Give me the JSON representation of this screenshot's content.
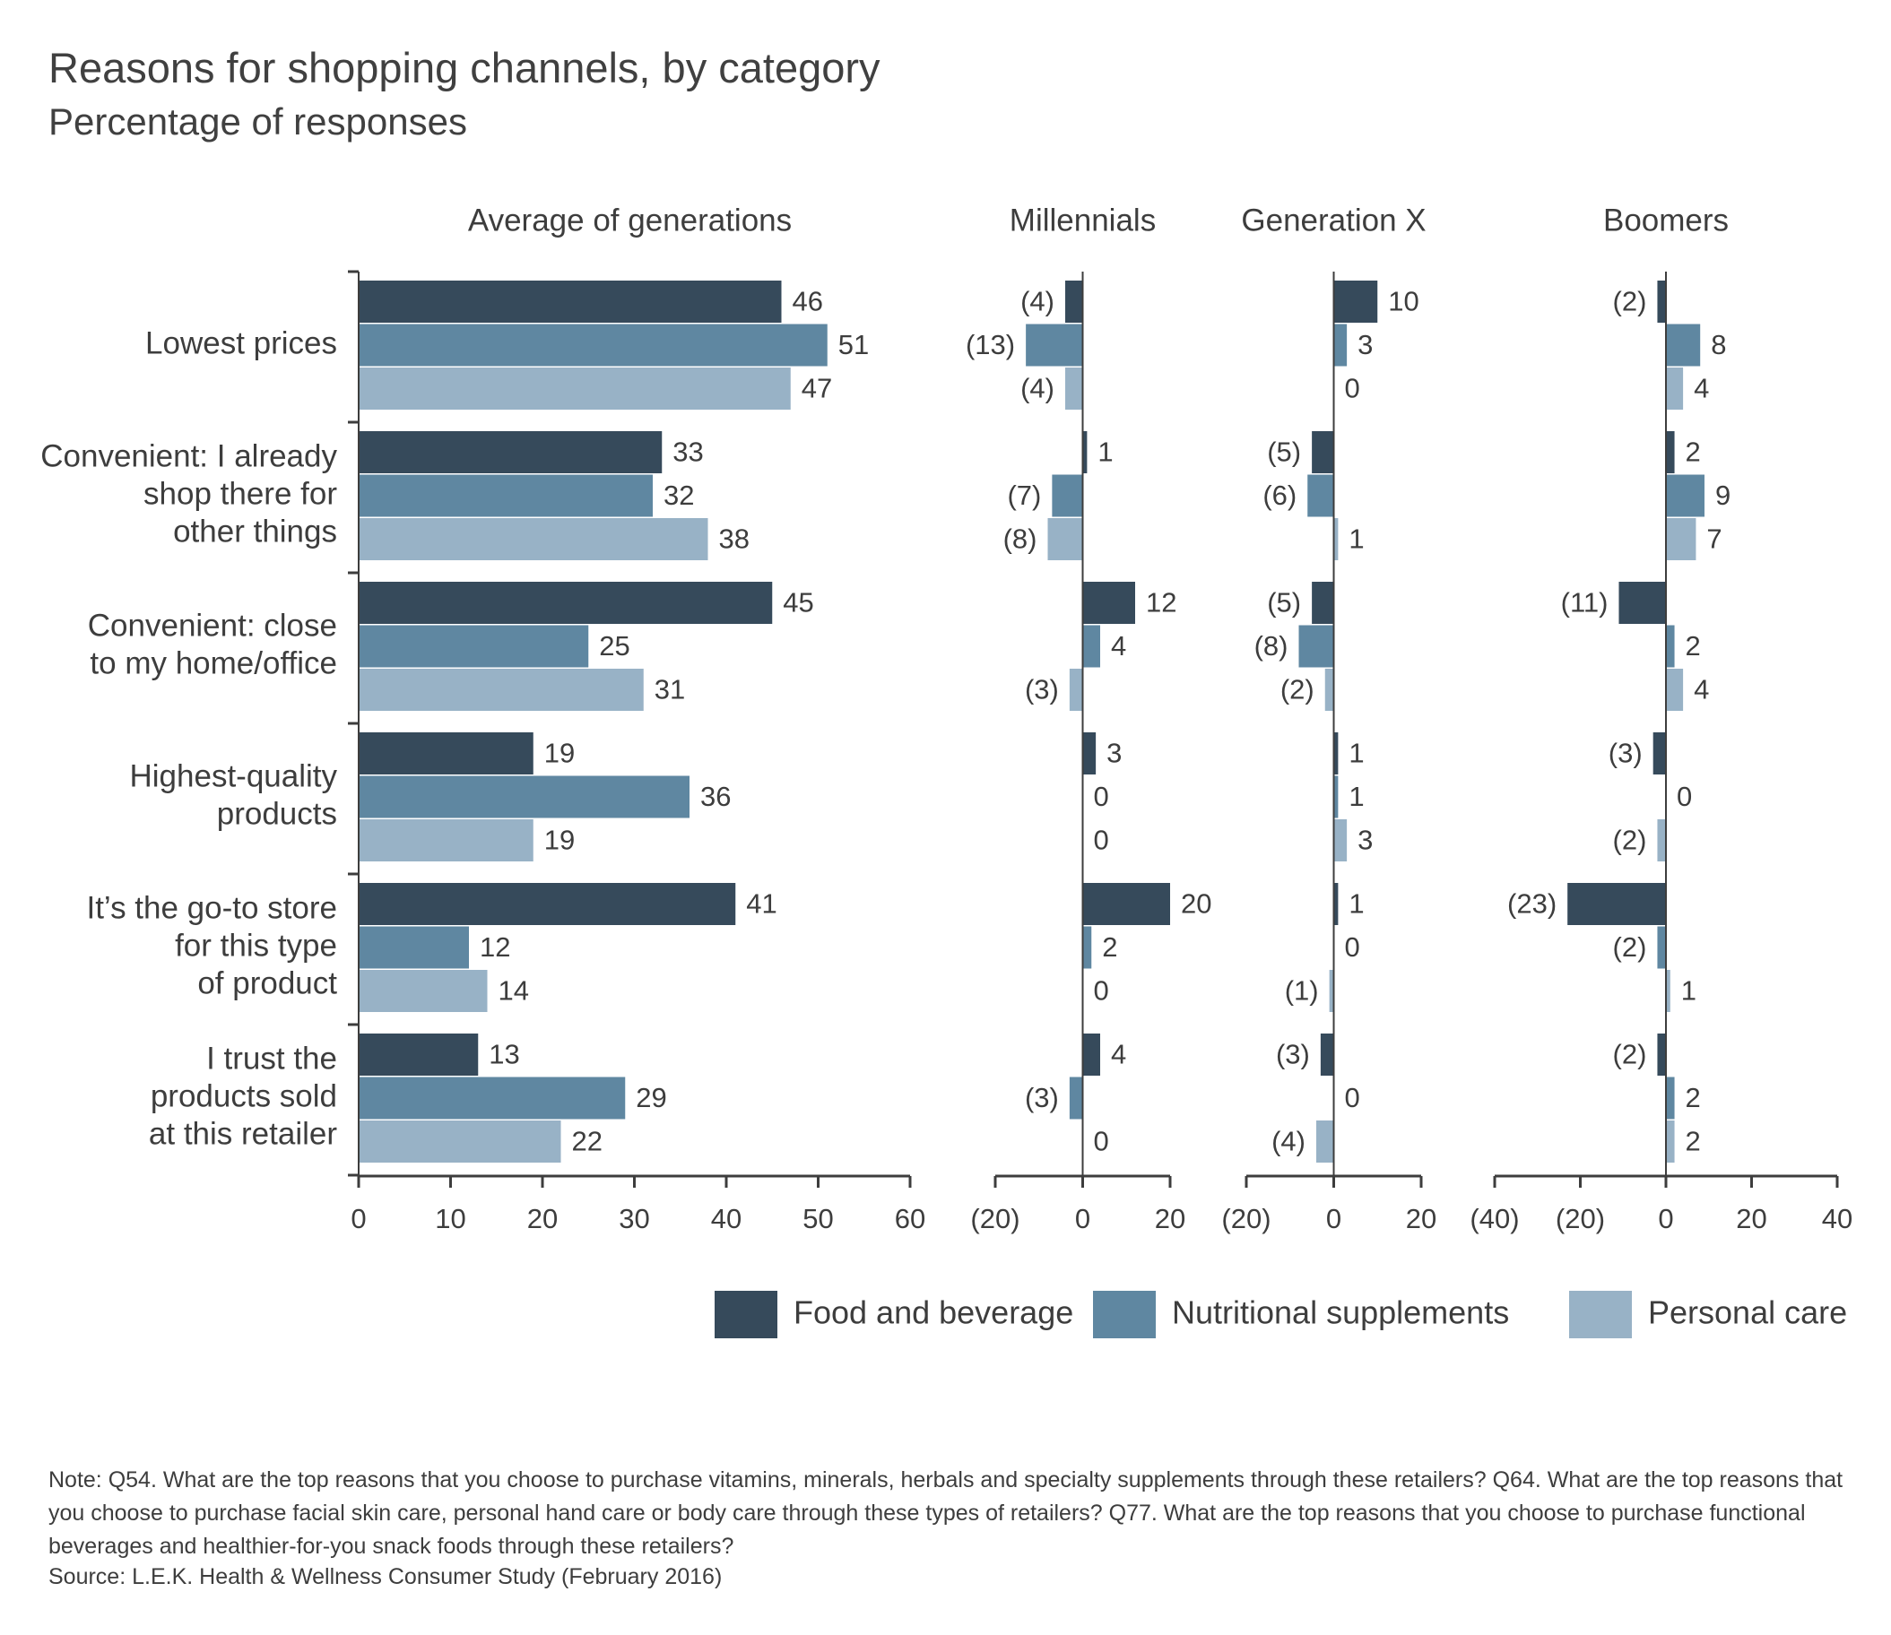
{
  "title": "Reasons for shopping channels, by category",
  "subtitle": "Percentage of responses",
  "note": "Note: Q54. What are the top reasons that you choose to purchase vitamins, minerals, herbals and specialty supplements through these retailers? Q64. What are the top reasons that you choose to purchase facial skin care, personal hand care or body care through these types of retailers? Q77. What are the top reasons that you choose to purchase functional beverages and healthier-for-you snack foods through these retailers?",
  "source": "Source: L.E.K. Health & Wellness Consumer Study (February 2016)",
  "colors": {
    "food_and_beverage": "#364a5b",
    "nutritional_supplements": "#5f87a1",
    "personal_care": "#98b2c6",
    "axis": "#3d3d3d",
    "text": "#3d3d3d"
  },
  "chart_data": {
    "type": "bar",
    "orientation": "horizontal",
    "categories": [
      "Lowest prices",
      "Convenient: I already shop there for other things",
      "Convenient: close to my home/office",
      "Highest-quality products",
      "It’s the go-to store for this type of product",
      "I trust the products sold at this retailer"
    ],
    "category_lines": [
      [
        "Lowest prices"
      ],
      [
        "Convenient: I already",
        "shop there for",
        "other things"
      ],
      [
        "Convenient: close",
        "to my home/office"
      ],
      [
        "Highest-quality",
        "products"
      ],
      [
        "It’s the go-to store",
        "for this type",
        "of product"
      ],
      [
        "I trust the",
        "products sold",
        "at this retailer"
      ]
    ],
    "legend": [
      "Food and beverage",
      "Nutritional supplements",
      "Personal care"
    ],
    "legend_position": "bottom-right",
    "negative_label_format": "parentheses",
    "panels": [
      {
        "title": "Average of generations",
        "xlim": [
          0,
          60
        ],
        "ticks": [
          0,
          10,
          20,
          30,
          40,
          50,
          60
        ],
        "tick_labels": [
          "0",
          "10",
          "20",
          "30",
          "40",
          "50",
          "60"
        ],
        "series": [
          {
            "name": "Food and beverage",
            "values": [
              46,
              33,
              45,
              19,
              41,
              13
            ]
          },
          {
            "name": "Nutritional supplements",
            "values": [
              51,
              32,
              25,
              36,
              12,
              29
            ]
          },
          {
            "name": "Personal care",
            "values": [
              47,
              38,
              31,
              19,
              14,
              22
            ]
          }
        ]
      },
      {
        "title": "Millennials",
        "xlim": [
          -20,
          20
        ],
        "ticks": [
          -20,
          0,
          20
        ],
        "tick_labels": [
          "(20)",
          "0",
          "20"
        ],
        "series": [
          {
            "name": "Food and beverage",
            "values": [
              -4,
              1,
              12,
              3,
              20,
              4
            ]
          },
          {
            "name": "Nutritional supplements",
            "values": [
              -13,
              -7,
              4,
              0,
              2,
              -3
            ]
          },
          {
            "name": "Personal care",
            "values": [
              -4,
              -8,
              -3,
              0,
              0,
              0
            ]
          }
        ]
      },
      {
        "title": "Generation X",
        "xlim": [
          -20,
          20
        ],
        "ticks": [
          -20,
          0,
          20
        ],
        "tick_labels": [
          "(20)",
          "0",
          "20"
        ],
        "series": [
          {
            "name": "Food and beverage",
            "values": [
              10,
              -5,
              -5,
              1,
              1,
              -3
            ]
          },
          {
            "name": "Nutritional supplements",
            "values": [
              3,
              -6,
              -8,
              1,
              0,
              0
            ]
          },
          {
            "name": "Personal care",
            "values": [
              0,
              1,
              -2,
              3,
              -1,
              -4
            ]
          }
        ]
      },
      {
        "title": "Boomers",
        "xlim": [
          -40,
          40
        ],
        "ticks": [
          -40,
          -20,
          0,
          20,
          40
        ],
        "tick_labels": [
          "(40)",
          "(20)",
          "0",
          "20",
          "40"
        ],
        "series": [
          {
            "name": "Food and beverage",
            "values": [
              -2,
              2,
              -11,
              -3,
              -23,
              -2
            ]
          },
          {
            "name": "Nutritional supplements",
            "values": [
              8,
              9,
              2,
              0,
              -2,
              2
            ]
          },
          {
            "name": "Personal care",
            "values": [
              4,
              7,
              4,
              -2,
              1,
              2
            ]
          }
        ]
      }
    ]
  }
}
